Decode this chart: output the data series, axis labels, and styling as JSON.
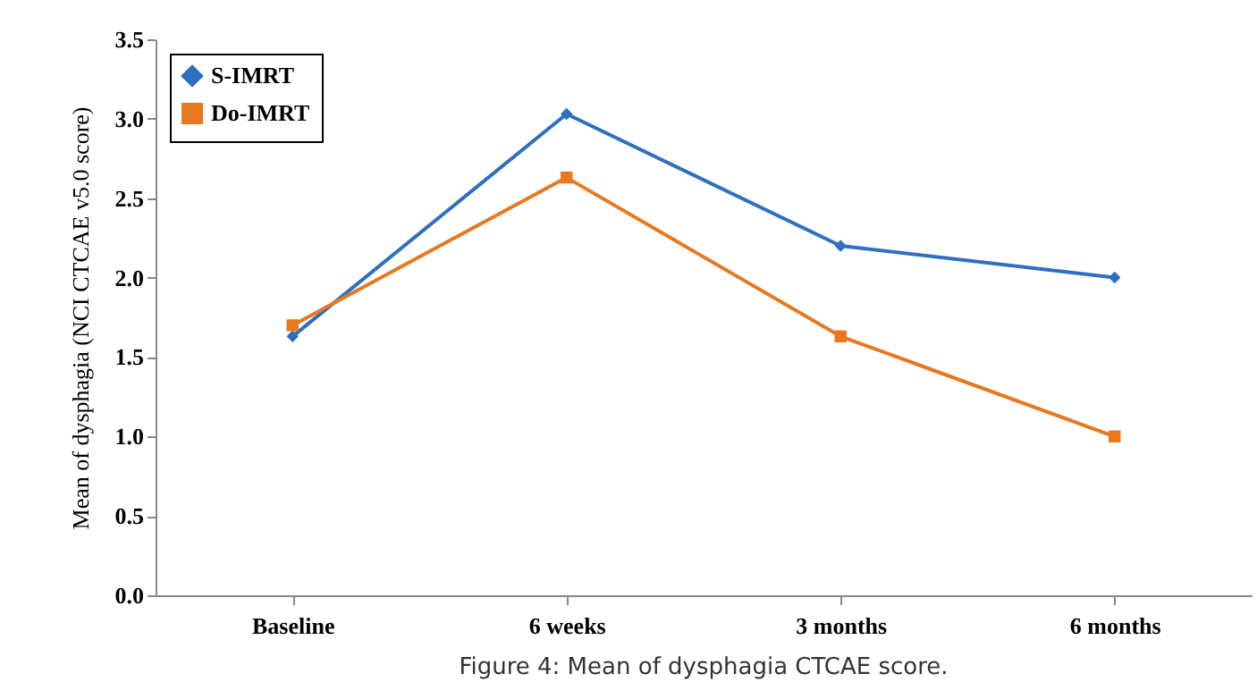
{
  "chart_data": {
    "type": "line",
    "ylabel": "Mean of dysphagia (NCI CTCAE v5.0 score)",
    "annotations": [
      "Figure 4: Mean of dysphagia CTCAE score."
    ],
    "categories": [
      "Baseline",
      "6 weeks",
      "3 months",
      "6 months"
    ],
    "series": [
      {
        "name": "S-IMRT",
        "color": "#2e6fc0",
        "marker": "diamond",
        "values": [
          1.63,
          3.03,
          2.2,
          2.0
        ]
      },
      {
        "name": "Do-IMRT",
        "color": "#e8781e",
        "marker": "square",
        "values": [
          1.7,
          2.63,
          1.63,
          1.0
        ]
      }
    ],
    "ylim": [
      0,
      3.5
    ],
    "yticks": [
      {
        "value": 0,
        "label": "0.0"
      },
      {
        "value": 0.5,
        "label": "0.5"
      },
      {
        "value": 1,
        "label": "1.0"
      },
      {
        "value": 1.5,
        "label": "1.5"
      },
      {
        "value": 2,
        "label": "2.0"
      },
      {
        "value": 2.5,
        "label": "2.5"
      },
      {
        "value": 3,
        "label": "3.0"
      },
      {
        "value": 3.5,
        "label": "3.5"
      }
    ],
    "legend": "top left",
    "grid": false,
    "line_style": "solid"
  }
}
